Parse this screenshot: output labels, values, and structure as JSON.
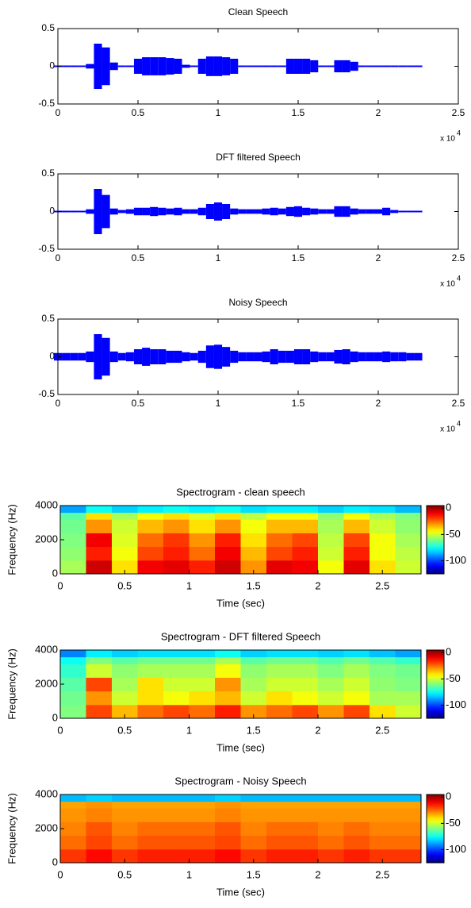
{
  "chart_data": [
    {
      "type": "waveform",
      "title": "Clean Speech",
      "color": "#0000ff",
      "x": [
        0,
        500,
        1000,
        1500,
        2000,
        2500,
        3000,
        3500,
        4000,
        4500,
        5000,
        5500,
        6000,
        6500,
        7000,
        7500,
        8000,
        8500,
        9000,
        9500,
        10000,
        10500,
        11000,
        11500,
        12000,
        12500,
        13000,
        13500,
        14000,
        14500,
        15000,
        15500,
        16000,
        16500,
        17000,
        17500,
        18000,
        18500,
        19000,
        19500,
        20000,
        20500,
        21000,
        21500,
        22000,
        22500
      ],
      "values": [
        0.005,
        0.005,
        0.005,
        0.01,
        0.03,
        0.3,
        0.25,
        0.05,
        0.01,
        0.01,
        0.1,
        0.12,
        0.12,
        0.12,
        0.11,
        0.1,
        0.02,
        0.01,
        0.1,
        0.13,
        0.13,
        0.12,
        0.1,
        0.01,
        0.01,
        0.01,
        0.01,
        0.01,
        0.01,
        0.1,
        0.1,
        0.1,
        0.08,
        0.01,
        0.01,
        0.08,
        0.08,
        0.06,
        0.01,
        0.01,
        0.005,
        0.005,
        0.005,
        0.005,
        0.005,
        0.005
      ],
      "xlim": [
        0,
        25000
      ],
      "xticks": [
        0,
        {
          "value": 5000,
          "label": "0.5"
        },
        {
          "value": 10000,
          "label": "1"
        },
        {
          "value": 15000,
          "label": "1.5"
        },
        {
          "value": 20000,
          "label": "2"
        },
        {
          "value": 25000,
          "label": "2.5"
        }
      ],
      "ylim": [
        -0.5,
        0.5
      ],
      "yticks": [
        -0.5,
        0,
        0.5
      ],
      "x_multiplier": "x 10",
      "x_multiplier_exponent": "4"
    },
    {
      "type": "waveform",
      "title": "DFT filtered Speech",
      "color": "#0000ff",
      "x": [
        0,
        500,
        1000,
        1500,
        2000,
        2500,
        3000,
        3500,
        4000,
        4500,
        5000,
        5500,
        6000,
        6500,
        7000,
        7500,
        8000,
        8500,
        9000,
        9500,
        10000,
        10500,
        11000,
        11500,
        12000,
        12500,
        13000,
        13500,
        14000,
        14500,
        15000,
        15500,
        16000,
        16500,
        17000,
        17500,
        18000,
        18500,
        19000,
        19500,
        20000,
        20500,
        21000,
        21500,
        22000,
        22500
      ],
      "values": [
        0.005,
        0.005,
        0.005,
        0.01,
        0.03,
        0.3,
        0.22,
        0.04,
        0.02,
        0.03,
        0.05,
        0.05,
        0.06,
        0.05,
        0.04,
        0.05,
        0.03,
        0.03,
        0.05,
        0.1,
        0.12,
        0.1,
        0.04,
        0.03,
        0.03,
        0.03,
        0.04,
        0.05,
        0.04,
        0.06,
        0.07,
        0.05,
        0.04,
        0.03,
        0.03,
        0.07,
        0.07,
        0.04,
        0.03,
        0.03,
        0.03,
        0.05,
        0.02,
        0.01,
        0.005,
        0.005
      ],
      "xlim": [
        0,
        25000
      ],
      "xticks": [
        0,
        {
          "value": 5000,
          "label": "0.5"
        },
        {
          "value": 10000,
          "label": "1"
        },
        {
          "value": 15000,
          "label": "1.5"
        },
        {
          "value": 20000,
          "label": "2"
        },
        {
          "value": 25000,
          "label": "2.5"
        }
      ],
      "ylim": [
        -0.5,
        0.5
      ],
      "yticks": [
        -0.5,
        0,
        0.5
      ],
      "x_multiplier": "x 10",
      "x_multiplier_exponent": "4"
    },
    {
      "type": "waveform",
      "title": "Noisy Speech",
      "color": "#0000ff",
      "x": [
        0,
        500,
        1000,
        1500,
        2000,
        2500,
        3000,
        3500,
        4000,
        4500,
        5000,
        5500,
        6000,
        6500,
        7000,
        7500,
        8000,
        8500,
        9000,
        9500,
        10000,
        10500,
        11000,
        11500,
        12000,
        12500,
        13000,
        13500,
        14000,
        14500,
        15000,
        15500,
        16000,
        16500,
        17000,
        17500,
        18000,
        18500,
        19000,
        19500,
        20000,
        20500,
        21000,
        21500,
        22000,
        22500
      ],
      "values": [
        0.05,
        0.05,
        0.05,
        0.05,
        0.07,
        0.3,
        0.25,
        0.07,
        0.05,
        0.06,
        0.1,
        0.12,
        0.1,
        0.1,
        0.08,
        0.08,
        0.06,
        0.05,
        0.08,
        0.15,
        0.16,
        0.13,
        0.08,
        0.06,
        0.06,
        0.06,
        0.07,
        0.1,
        0.08,
        0.08,
        0.1,
        0.1,
        0.07,
        0.06,
        0.06,
        0.09,
        0.1,
        0.07,
        0.06,
        0.06,
        0.06,
        0.07,
        0.06,
        0.06,
        0.05,
        0.05
      ],
      "xlim": [
        0,
        25000
      ],
      "xticks": [
        0,
        {
          "value": 5000,
          "label": "0.5"
        },
        {
          "value": 10000,
          "label": "1"
        },
        {
          "value": 15000,
          "label": "1.5"
        },
        {
          "value": 20000,
          "label": "2"
        },
        {
          "value": 25000,
          "label": "2.5"
        }
      ],
      "ylim": [
        -0.5,
        0.5
      ],
      "yticks": [
        -0.5,
        0,
        0.5
      ],
      "x_multiplier": "x 10",
      "x_multiplier_exponent": "4"
    },
    {
      "type": "spectrogram",
      "title": "Spectrogram - clean speech",
      "xlabel": "Time (sec)",
      "ylabel": "Frequency (Hz)",
      "x_edges": [
        0,
        0.2,
        0.4,
        0.6,
        0.8,
        1,
        1.2,
        1.4,
        1.6,
        1.8,
        2,
        2.2,
        2.4,
        2.6,
        2.8
      ],
      "y_edges": [
        0,
        800,
        1600,
        2400,
        3200,
        3600,
        4000
      ],
      "values": [
        [
          -55,
          -5,
          -40,
          -10,
          -8,
          -15,
          -5,
          -30,
          -8,
          -10,
          -45,
          -8,
          -40,
          -50
        ],
        [
          -58,
          -15,
          -45,
          -20,
          -15,
          -25,
          -10,
          -35,
          -20,
          -15,
          -50,
          -15,
          -45,
          -52
        ],
        [
          -60,
          -10,
          -48,
          -25,
          -18,
          -30,
          -15,
          -40,
          -25,
          -20,
          -52,
          -20,
          -45,
          -55
        ],
        [
          -62,
          -30,
          -50,
          -35,
          -30,
          -40,
          -30,
          -45,
          -35,
          -35,
          -55,
          -35,
          -50,
          -58
        ],
        [
          -65,
          -40,
          -55,
          -45,
          -40,
          -48,
          -40,
          -52,
          -45,
          -45,
          -58,
          -45,
          -55,
          -60
        ],
        [
          -88,
          -75,
          -82,
          -78,
          -75,
          -78,
          -75,
          -80,
          -78,
          -78,
          -82,
          -78,
          -80,
          -85
        ]
      ],
      "xlim": [
        0,
        2.8
      ],
      "xticks": [
        0,
        0.5,
        1,
        1.5,
        2,
        2.5
      ],
      "ylim": [
        0,
        4000
      ],
      "yticks": [
        0,
        2000,
        4000
      ],
      "colormap": "jet",
      "clim": [
        -125,
        5
      ],
      "cticks": [
        -100,
        -50,
        0
      ]
    },
    {
      "type": "spectrogram",
      "title": "Spectrogram - DFT filtered Speech",
      "xlabel": "Time (sec)",
      "ylabel": "Frequency (Hz)",
      "x_edges": [
        0,
        0.2,
        0.4,
        0.6,
        0.8,
        1,
        1.2,
        1.4,
        1.6,
        1.8,
        2,
        2.2,
        2.4,
        2.6,
        2.8
      ],
      "y_edges": [
        0,
        800,
        1600,
        2400,
        3200,
        3600,
        4000
      ],
      "values": [
        [
          -60,
          -20,
          -35,
          -25,
          -20,
          -25,
          -15,
          -30,
          -25,
          -20,
          -30,
          -20,
          -40,
          -50
        ],
        [
          -62,
          -30,
          -50,
          -40,
          -45,
          -40,
          -35,
          -50,
          -40,
          -45,
          -50,
          -45,
          -55,
          -55
        ],
        [
          -65,
          -20,
          -55,
          -40,
          -50,
          -50,
          -30,
          -55,
          -50,
          -50,
          -55,
          -50,
          -58,
          -60
        ],
        [
          -70,
          -50,
          -58,
          -55,
          -55,
          -55,
          -45,
          -58,
          -55,
          -55,
          -60,
          -55,
          -60,
          -62
        ],
        [
          -75,
          -60,
          -65,
          -62,
          -62,
          -62,
          -55,
          -65,
          -62,
          -62,
          -66,
          -62,
          -66,
          -70
        ],
        [
          -92,
          -78,
          -82,
          -80,
          -80,
          -80,
          -75,
          -82,
          -80,
          -80,
          -82,
          -80,
          -84,
          -88
        ]
      ],
      "xlim": [
        0,
        2.8
      ],
      "xticks": [
        0,
        0.5,
        1,
        1.5,
        2,
        2.5
      ],
      "ylim": [
        0,
        4000
      ],
      "yticks": [
        0,
        2000,
        4000
      ],
      "colormap": "jet",
      "clim": [
        -125,
        5
      ],
      "cticks": [
        -100,
        -50,
        0
      ]
    },
    {
      "type": "spectrogram",
      "title": "Spectrogram - Noisy Speech",
      "xlabel": "Time (sec)",
      "ylabel": "Frequency (Hz)",
      "x_edges": [
        0,
        0.2,
        0.4,
        0.6,
        0.8,
        1,
        1.2,
        1.4,
        1.6,
        1.8,
        2,
        2.2,
        2.4,
        2.6,
        2.8
      ],
      "y_edges": [
        0,
        800,
        1600,
        2400,
        3200,
        3600,
        4000
      ],
      "values": [
        [
          -18,
          -12,
          -18,
          -15,
          -15,
          -15,
          -12,
          -18,
          -15,
          -15,
          -18,
          -15,
          -18,
          -18
        ],
        [
          -25,
          -20,
          -25,
          -22,
          -22,
          -22,
          -20,
          -25,
          -22,
          -22,
          -25,
          -22,
          -25,
          -25
        ],
        [
          -28,
          -22,
          -28,
          -25,
          -25,
          -25,
          -22,
          -28,
          -25,
          -25,
          -28,
          -25,
          -28,
          -28
        ],
        [
          -30,
          -28,
          -30,
          -30,
          -30,
          -30,
          -28,
          -30,
          -30,
          -30,
          -30,
          -30,
          -30,
          -30
        ],
        [
          -32,
          -30,
          -32,
          -32,
          -32,
          -32,
          -30,
          -32,
          -32,
          -32,
          -32,
          -32,
          -32,
          -32
        ],
        [
          -85,
          -82,
          -85,
          -85,
          -85,
          -85,
          -82,
          -85,
          -85,
          -85,
          -85,
          -85,
          -85,
          -85
        ]
      ],
      "xlim": [
        0,
        2.8
      ],
      "xticks": [
        0,
        0.5,
        1,
        1.5,
        2,
        2.5
      ],
      "ylim": [
        0,
        4000
      ],
      "yticks": [
        0,
        2000,
        4000
      ],
      "colormap": "jet",
      "clim": [
        -125,
        5
      ],
      "cticks": [
        -100,
        -50,
        0
      ]
    }
  ]
}
